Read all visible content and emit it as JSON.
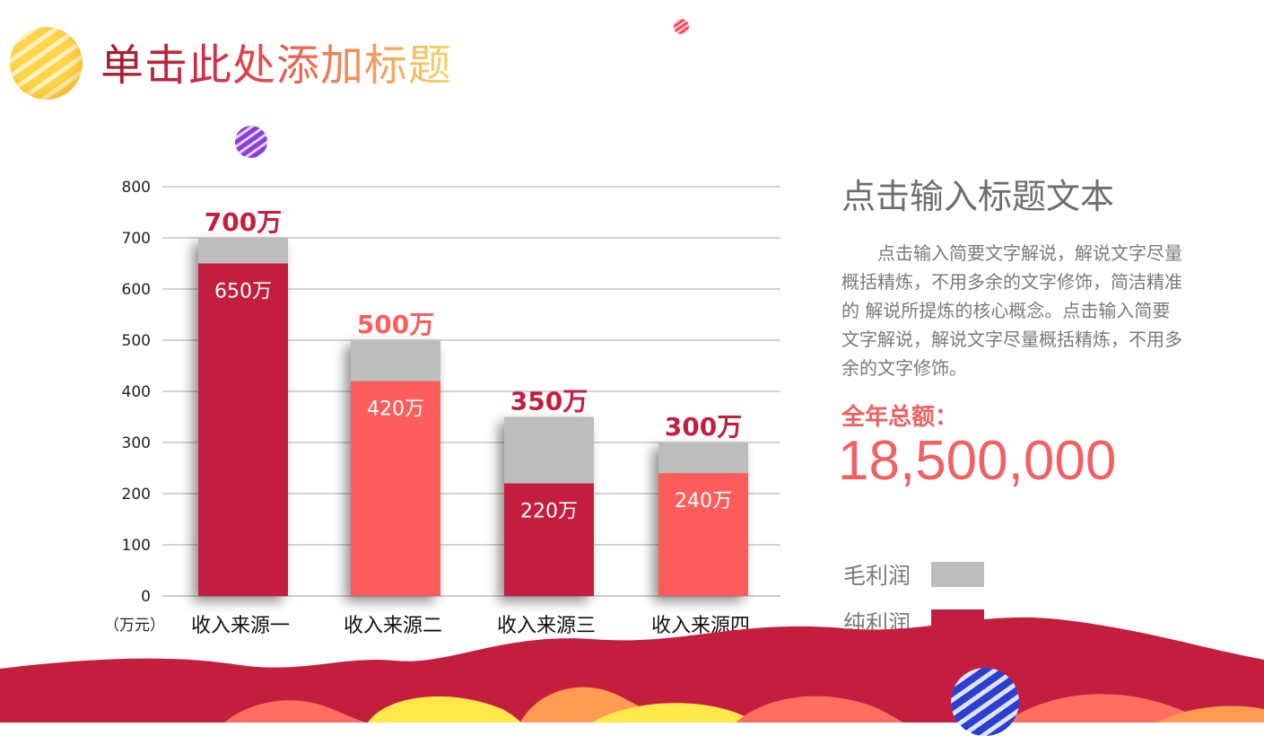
{
  "header": {
    "title": "单击此处添加标题"
  },
  "panel": {
    "title": "点击输入标题文本",
    "body": "点击输入简要文字解说，解说文字尽量概括精炼，不用多余的文字修饰，简洁精准的 解说所提炼的核心概念。点击输入简要文字解说，解说文字尽量概括精炼，不用多余的文字修饰。",
    "total_label": "全年总额：",
    "total_value": "18,500,000"
  },
  "legend": [
    {
      "label": "毛利润",
      "color": "#bdbdbd"
    },
    {
      "label": "纯利润",
      "color": "#c41e3f"
    }
  ],
  "colors": {
    "crimson": "#c41e3f",
    "coral": "#ff5c5c",
    "gray": "#bdbdbd"
  },
  "chart_data": {
    "type": "bar",
    "categories": [
      "收入来源一",
      "收入来源二",
      "收入来源三",
      "收入来源四"
    ],
    "series": [
      {
        "name": "毛利润",
        "values": [
          700,
          500,
          350,
          300
        ]
      },
      {
        "name": "纯利润",
        "values": [
          650,
          420,
          220,
          240
        ]
      }
    ],
    "gross_labels": [
      "700万",
      "500万",
      "350万",
      "300万"
    ],
    "net_labels": [
      "650万",
      "420万",
      "220万",
      "240万"
    ],
    "bar_colors": [
      "#c41e3f",
      "#ff5c5c",
      "#c41e3f",
      "#ff5c5c"
    ],
    "gross_label_colors": [
      "#c41e3f",
      "#ff5c5c",
      "#c41e3f",
      "#c41e3f"
    ],
    "y_ticks": [
      0,
      100,
      200,
      300,
      400,
      500,
      600,
      700,
      800
    ],
    "ylim": [
      0,
      800
    ],
    "unit_label": "（万元）",
    "grid": true
  }
}
